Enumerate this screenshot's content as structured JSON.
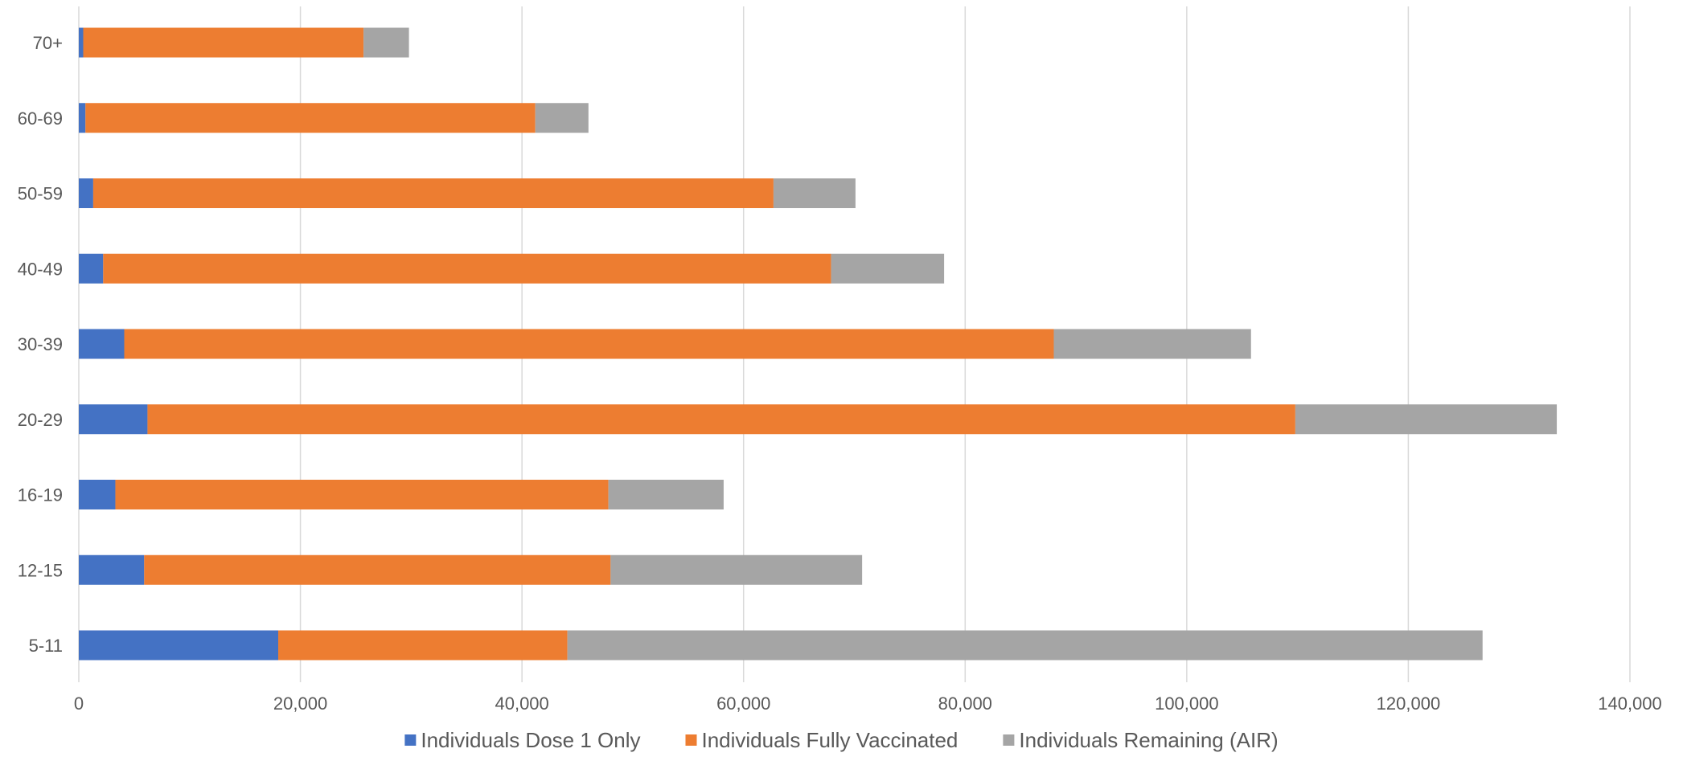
{
  "chart_data": {
    "type": "bar",
    "orientation": "horizontal",
    "stacked": true,
    "title": "",
    "xlabel": "",
    "ylabel": "",
    "categories": [
      "5-11",
      "12-15",
      "16-19",
      "20-29",
      "30-39",
      "40-49",
      "50-59",
      "60-69",
      "70+"
    ],
    "series": [
      {
        "name": "Individuals Dose 1 Only",
        "color": "#4472C4",
        "values": [
          18000,
          5900,
          3300,
          6200,
          4100,
          2200,
          1300,
          600,
          400
        ]
      },
      {
        "name": "Individuals Fully Vaccinated",
        "color": "#ED7D31",
        "values": [
          26100,
          42100,
          44500,
          103600,
          83900,
          65700,
          61400,
          40600,
          25300
        ]
      },
      {
        "name": "Individuals Remaining (AIR)",
        "color": "#A5A5A5",
        "values": [
          82600,
          22700,
          10400,
          23600,
          17800,
          10200,
          7400,
          4800,
          4100
        ]
      }
    ],
    "xlim": [
      0,
      140000
    ],
    "xticks": [
      0,
      20000,
      40000,
      60000,
      80000,
      100000,
      120000,
      140000
    ],
    "xtick_labels": [
      "0",
      "20,000",
      "40,000",
      "60,000",
      "80,000",
      "100,000",
      "120,000",
      "140,000"
    ],
    "grid": "vertical",
    "legend_position": "bottom"
  }
}
